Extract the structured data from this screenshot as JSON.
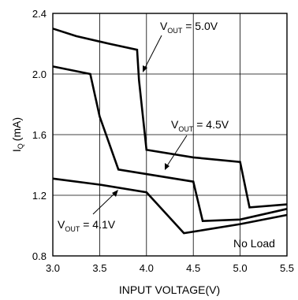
{
  "chart_data": {
    "type": "line",
    "xlabel": "INPUT VOLTAGE(V)",
    "ylabel": "I",
    "ylabel_sub": "Q",
    "ylabel_unit": "(mA)",
    "xlim": [
      3.0,
      5.5
    ],
    "ylim": [
      0.8,
      2.4
    ],
    "x_ticks": [
      3.0,
      3.5,
      4.0,
      4.5,
      5.0,
      5.5
    ],
    "x_tick_labels": [
      "3.0",
      "3.5",
      "4.0",
      "4.5",
      "5.0",
      "5.5"
    ],
    "y_ticks": [
      0.8,
      1.2,
      1.6,
      2.0,
      2.4
    ],
    "y_tick_labels": [
      "0.8",
      "1.2",
      "1.6",
      "2.0",
      "2.4"
    ],
    "grid": true,
    "series": [
      {
        "label_main": "V",
        "label_sub": "OUT",
        "label_value": " = 5.0V",
        "points": [
          [
            3.0,
            2.3
          ],
          [
            3.25,
            2.25
          ],
          [
            3.6,
            2.2
          ],
          [
            3.9,
            2.16
          ],
          [
            3.92,
            1.96
          ],
          [
            4.0,
            1.5
          ],
          [
            4.5,
            1.45
          ],
          [
            5.0,
            1.42
          ],
          [
            5.1,
            1.12
          ],
          [
            5.5,
            1.14
          ]
        ]
      },
      {
        "label_main": "V",
        "label_sub": "OUT",
        "label_value": " = 4.5V",
        "points": [
          [
            3.0,
            2.05
          ],
          [
            3.4,
            2.0
          ],
          [
            3.5,
            1.72
          ],
          [
            3.7,
            1.37
          ],
          [
            4.5,
            1.29
          ],
          [
            4.6,
            1.03
          ],
          [
            5.0,
            1.04
          ],
          [
            5.5,
            1.11
          ]
        ]
      },
      {
        "label_main": "V",
        "label_sub": "OUT",
        "label_value": " = 4.1V",
        "points": [
          [
            3.0,
            1.31
          ],
          [
            3.5,
            1.27
          ],
          [
            4.0,
            1.22
          ],
          [
            4.4,
            0.95
          ],
          [
            4.6,
            0.97
          ],
          [
            5.0,
            1.01
          ],
          [
            5.5,
            1.07
          ]
        ]
      }
    ],
    "annotations": {
      "no_load": "No Load"
    }
  }
}
